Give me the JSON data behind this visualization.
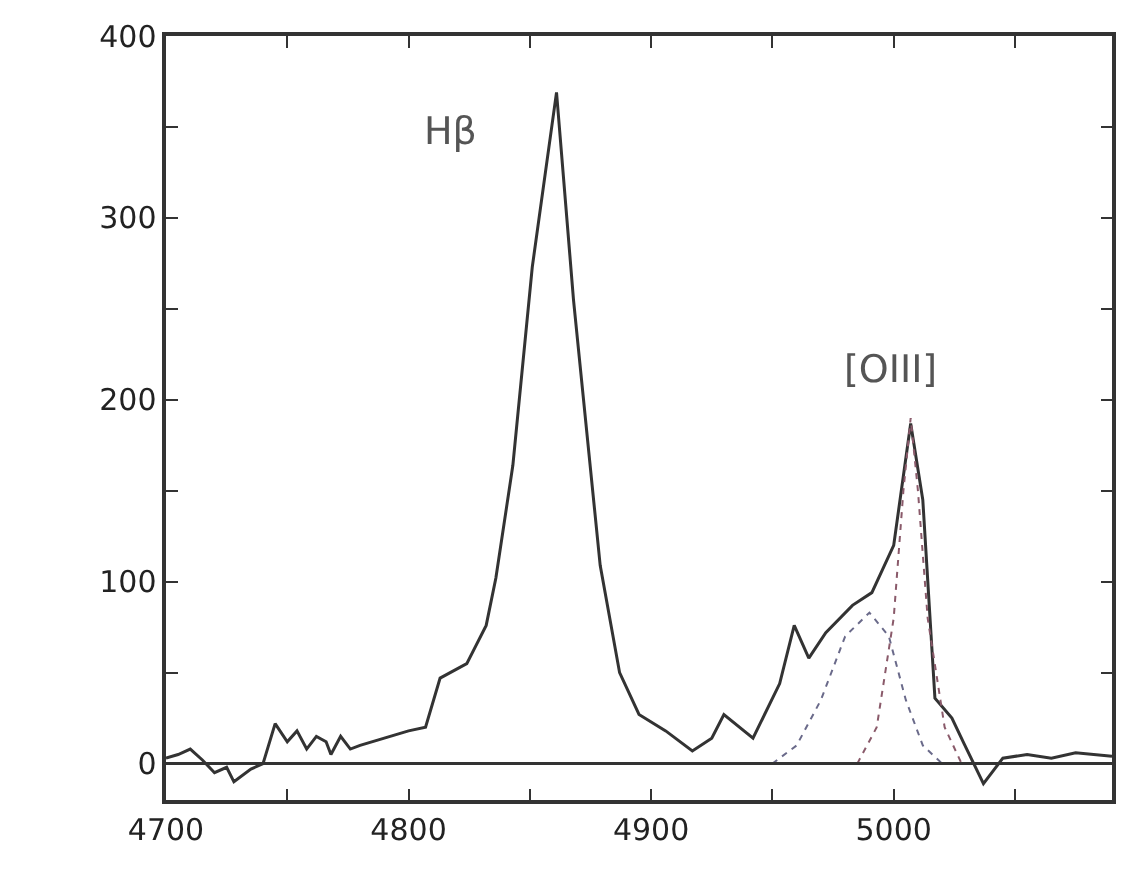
{
  "chart_data": {
    "type": "line",
    "xlim": [
      4700,
      5090
    ],
    "ylim": [
      -20,
      400
    ],
    "xticks": [
      4700,
      {
        "value": 4750,
        "label": null
      },
      4800,
      {
        "value": 4850,
        "label": null
      },
      4900,
      {
        "value": 4950,
        "label": null
      },
      5000,
      {
        "value": 5050,
        "label": null
      }
    ],
    "yticks": [
      0,
      {
        "value": 50,
        "label": null
      },
      100,
      {
        "value": 150,
        "label": null
      },
      200,
      {
        "value": 250,
        "label": null
      },
      300,
      {
        "value": 350,
        "label": null
      },
      400
    ],
    "marker": "none",
    "series": [
      {
        "color": "#333333",
        "line_style": "solid",
        "x": [
          4700,
          4705,
          4710,
          4715,
          4720,
          4725,
          4728,
          4735,
          4740,
          4745,
          4750,
          4754,
          4758,
          4762,
          4766,
          4768,
          4772,
          4776,
          4780,
          4790,
          4800,
          4807,
          4813,
          4824,
          4832,
          4836,
          4843,
          4851,
          4861,
          4868,
          4879,
          4887,
          4895,
          4906,
          4917,
          4925,
          4930,
          4942,
          4953,
          4959,
          4965,
          4972,
          4983,
          4991,
          5000,
          5007,
          5012,
          5017,
          5024,
          5029,
          5037,
          5045,
          5055,
          5065,
          5075,
          5090
        ],
        "values": [
          3,
          5,
          8,
          2,
          -5,
          -2,
          -10,
          -3,
          0,
          22,
          12,
          18,
          8,
          15,
          12,
          5,
          15,
          8,
          10,
          14,
          18,
          20,
          47,
          55,
          76,
          102,
          164,
          273,
          369,
          255,
          109,
          50,
          27,
          18,
          7,
          14,
          27,
          14,
          44,
          76,
          58,
          72,
          87,
          94,
          120,
          187,
          145,
          36,
          25,
          11,
          -11,
          3,
          5,
          3,
          6,
          4
        ]
      },
      {
        "color": "#6a6a8a",
        "line_style": "dotted",
        "x": [
          4950,
          4960,
          4970,
          4980,
          4990,
          4998,
          5005,
          5012,
          5020
        ],
        "values": [
          0,
          10,
          35,
          70,
          83,
          70,
          35,
          10,
          0
        ]
      },
      {
        "color": "#8a5a6a",
        "line_style": "dotted",
        "x": [
          4985,
          4993,
          5000,
          5004,
          5007,
          5010,
          5014,
          5021,
          5028
        ],
        "values": [
          0,
          20,
          80,
          150,
          190,
          150,
          80,
          20,
          0
        ]
      }
    ],
    "ref_lines": [
      {
        "axis": "y",
        "value": 0,
        "color": "#333333"
      }
    ],
    "annotations": [
      {
        "text": "Hβ",
        "x": 4861,
        "y": 369
      },
      {
        "text": "[OIII]",
        "x": 5007,
        "y": 187
      }
    ]
  }
}
